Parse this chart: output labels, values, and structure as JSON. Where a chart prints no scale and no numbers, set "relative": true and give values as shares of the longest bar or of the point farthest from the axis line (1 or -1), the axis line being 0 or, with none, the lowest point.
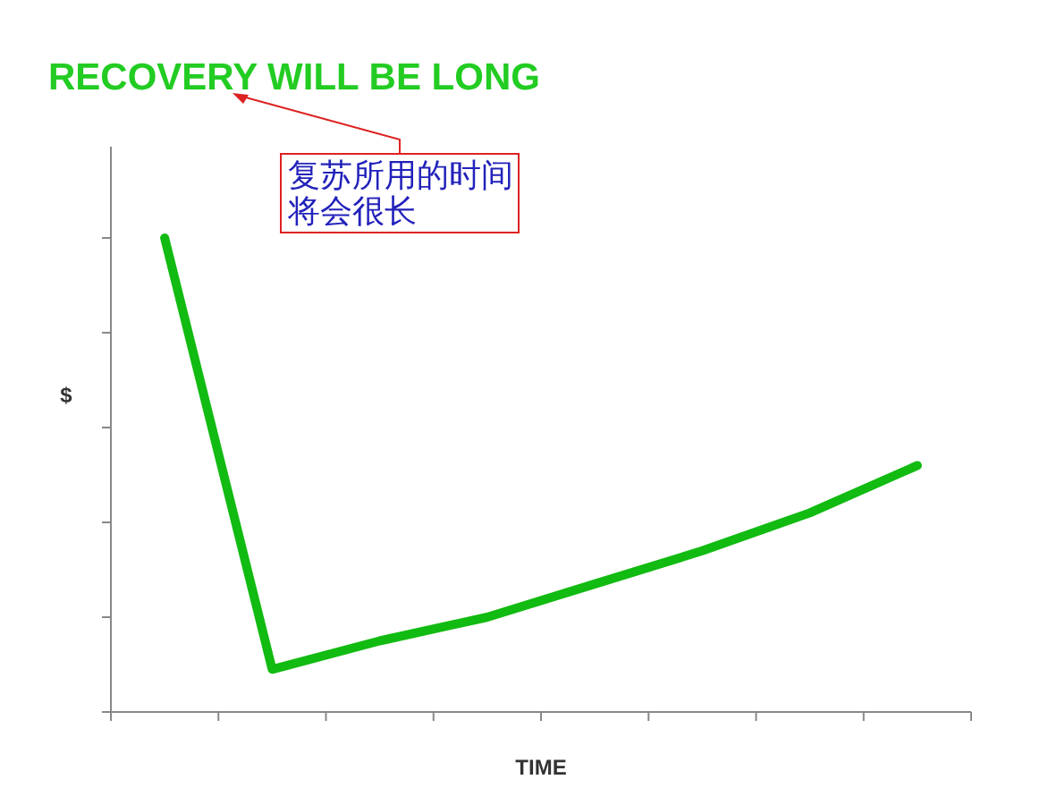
{
  "chart_data": {
    "type": "line",
    "title": "RECOVERY WILL BE LONG",
    "xlabel": "TIME",
    "ylabel": "$",
    "annotations": [
      "复苏所用的时间",
      "将会很长"
    ],
    "categories": [
      null,
      null,
      null,
      null,
      null,
      null,
      null,
      null
    ],
    "relative": true,
    "series": [
      {
        "color": "#11bb11",
        "values": [
          1,
          0.09,
          0.15,
          0.2,
          0.27,
          0.34,
          0.42,
          0.52
        ]
      }
    ]
  }
}
